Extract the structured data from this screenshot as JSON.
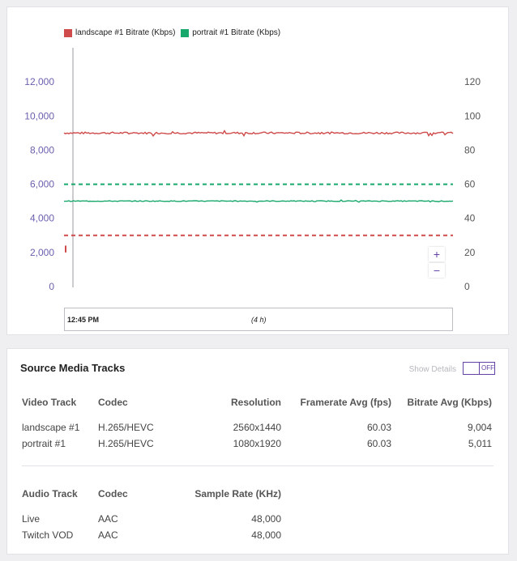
{
  "chart": {
    "legend": [
      {
        "label": "landscape #1 Bitrate (Kbps)",
        "color": "#cf4a4a"
      },
      {
        "label": "portrait #1 Bitrate (Kbps)",
        "color": "#18a86b"
      }
    ],
    "zoom_in": "+",
    "zoom_out": "−",
    "navigator": {
      "start_time": "12:45 PM",
      "range": "(4 h)"
    },
    "colors": {
      "left_axis": "#6a5fae",
      "right_axis": "#555555",
      "landscape": "#cf4a4a",
      "portrait": "#18a86b"
    }
  },
  "chart_data": {
    "type": "line",
    "yaxis_left": {
      "ticks": [
        "0",
        "2,000",
        "4,000",
        "6,000",
        "8,000",
        "10,000",
        "12,000"
      ],
      "range": [
        0,
        14000
      ]
    },
    "yaxis_right": {
      "ticks": [
        "0",
        "20",
        "40",
        "60",
        "80",
        "100",
        "120"
      ],
      "range": [
        0,
        140
      ]
    },
    "series": [
      {
        "name": "landscape #1 Bitrate (Kbps)",
        "axis": "left",
        "approx_value": 9004,
        "style": "solid"
      },
      {
        "name": "portrait #1 Bitrate (Kbps)",
        "axis": "left",
        "approx_value": 5011,
        "style": "solid"
      },
      {
        "axis": "right",
        "value": 60,
        "style": "dashed",
        "color": "#18a86b"
      },
      {
        "axis": "right",
        "value": 30,
        "style": "dashed",
        "color": "#cf4a4a"
      }
    ],
    "grid": false
  },
  "tracks": {
    "title": "Source Media Tracks",
    "show_details_label": "Show Details",
    "toggle_state": "OFF",
    "video": {
      "headers": [
        "Video Track",
        "Codec",
        "Resolution",
        "Framerate Avg (fps)",
        "Bitrate Avg (Kbps)"
      ],
      "rows": [
        [
          "landscape #1",
          "H.265/HEVC",
          "2560x1440",
          "60.03",
          "9,004"
        ],
        [
          "portrait #1",
          "H.265/HEVC",
          "1080x1920",
          "60.03",
          "5,011"
        ]
      ]
    },
    "audio": {
      "headers": [
        "Audio Track",
        "Codec",
        "Sample Rate (KHz)"
      ],
      "rows": [
        [
          "Live",
          "AAC",
          "48,000"
        ],
        [
          "Twitch VOD",
          "AAC",
          "48,000"
        ]
      ]
    }
  }
}
